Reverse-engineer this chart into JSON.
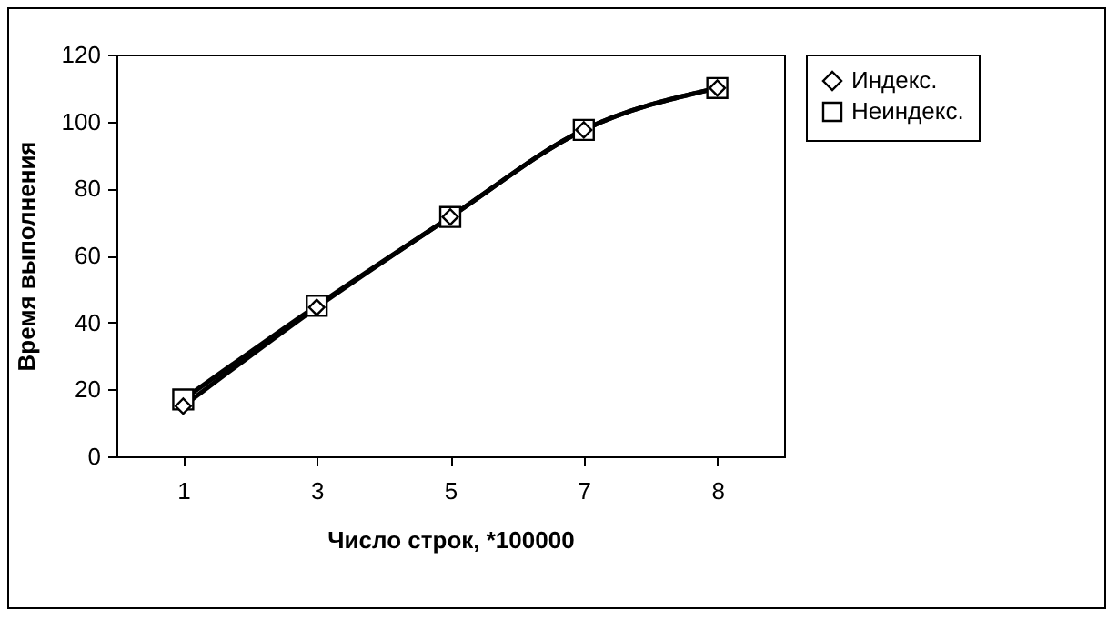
{
  "chart_data": {
    "type": "line",
    "xlabel": "Число строк, *100000",
    "ylabel": "Время выполнения",
    "categories": [
      "1",
      "3",
      "5",
      "7",
      "8"
    ],
    "ylim": [
      0,
      120
    ],
    "yticks": [
      0,
      20,
      40,
      60,
      80,
      100,
      120
    ],
    "grid": false,
    "legend": "right",
    "line_style": "solid",
    "series": [
      {
        "name": "Индекс.",
        "color": "#000000",
        "marker": "diamond",
        "values": [
          15,
          44.5,
          71.5,
          97.5,
          110
        ]
      },
      {
        "name": "Неиндекс.",
        "color": "#000000",
        "marker": "square",
        "values": [
          17,
          45,
          71.5,
          97.5,
          110
        ]
      }
    ]
  }
}
